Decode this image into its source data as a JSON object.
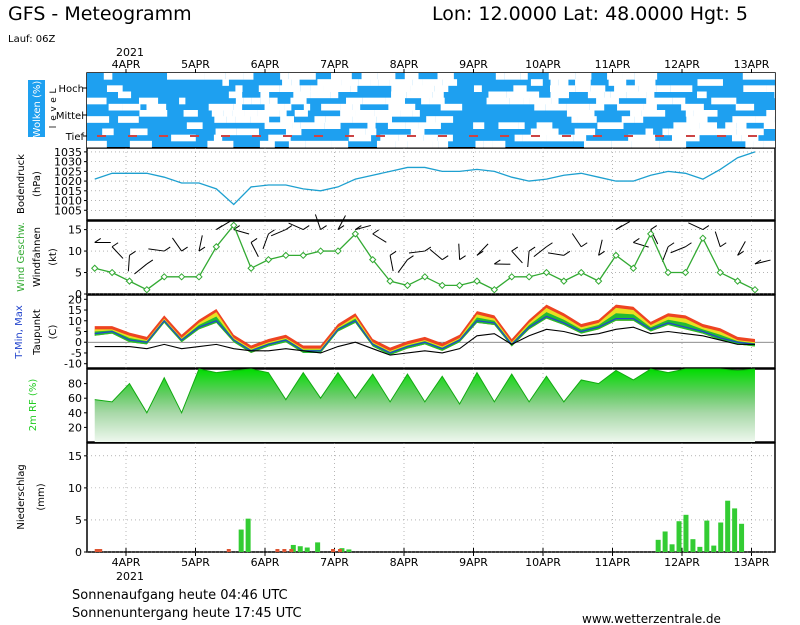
{
  "header": {
    "title": "GFS - Meteogramm",
    "location": "Lon: 12.0000 Lat: 48.0000 Hgt: 5",
    "run": "Lauf: 06Z"
  },
  "footer": {
    "sunrise": "Sonnenaufgang heute 04:46 UTC",
    "sunset": "Sonnenuntergang heute 17:45 UTC",
    "website": "www.wetterzentrale.de"
  },
  "time_axis": {
    "year": "2021",
    "dates": [
      "4APR",
      "5APR",
      "6APR",
      "7APR",
      "8APR",
      "9APR",
      "10APR",
      "11APR",
      "12APR",
      "13APR"
    ]
  },
  "colors": {
    "cloud": "#1ea0f0",
    "pressure": "#1ea0d0",
    "wind": "#33aa33",
    "temp_band_green": "#22bb33",
    "temp_band_yellow": "#e8e022",
    "temp_band_red": "#ee4422",
    "humidity": "#22cc22",
    "precip_rain": "#33cc33",
    "precip_red": "#dd5533"
  },
  "chart_data": [
    {
      "type": "heatmap",
      "title": "Wolken (%)",
      "ylabel": "Level",
      "levels": [
        "Hoch",
        "Mittel",
        "Tief"
      ]
    },
    {
      "type": "line",
      "ylabel": "Bodendruck (hPa)",
      "ylim": [
        1000,
        1037
      ],
      "yticks": [
        1005,
        1010,
        1015,
        1020,
        1025,
        1030,
        1035
      ],
      "x": [
        0,
        0.25,
        0.5,
        0.75,
        1,
        1.25,
        1.5,
        1.75,
        2,
        2.25,
        2.5,
        2.75,
        3,
        3.25,
        3.5,
        3.75,
        4,
        4.25,
        4.5,
        4.75,
        5,
        5.25,
        5.5,
        5.75,
        6,
        6.25,
        6.5,
        6.75,
        7,
        7.25,
        7.5,
        7.75,
        8,
        8.25,
        8.5,
        8.75,
        9,
        9.25,
        9.5
      ],
      "values": [
        1021,
        1024,
        1024,
        1024,
        1022,
        1019,
        1019,
        1016,
        1008,
        1017,
        1018,
        1018,
        1016,
        1015,
        1017,
        1021,
        1023,
        1025,
        1027,
        1027,
        1025,
        1025,
        1026,
        1025,
        1022,
        1020,
        1021,
        1023,
        1024,
        1022,
        1020,
        1020,
        1023,
        1025,
        1024,
        1021,
        1026,
        1032,
        1035
      ]
    },
    {
      "type": "line",
      "ylabel": "Wind Geschw. (kt)",
      "series_label": "Windfahnen",
      "ylim": [
        0,
        17
      ],
      "yticks": [
        0,
        5,
        10,
        15
      ],
      "x": [
        0,
        0.25,
        0.5,
        0.75,
        1,
        1.25,
        1.5,
        1.75,
        2,
        2.25,
        2.5,
        2.75,
        3,
        3.25,
        3.5,
        3.75,
        4,
        4.25,
        4.5,
        4.75,
        5,
        5.25,
        5.5,
        5.75,
        6,
        6.25,
        6.5,
        6.75,
        7,
        7.25,
        7.5,
        7.75,
        8,
        8.25,
        8.5,
        8.75,
        9,
        9.25,
        9.5
      ],
      "values": [
        6,
        5,
        3,
        1,
        4,
        4,
        4,
        11,
        16,
        6,
        8,
        9,
        9,
        10,
        10,
        14,
        8,
        3,
        2,
        4,
        2,
        2,
        3,
        1,
        4,
        4,
        5,
        3,
        5,
        3,
        9,
        6,
        14,
        5,
        5,
        13,
        5,
        3,
        1
      ]
    },
    {
      "type": "area",
      "ylabel": "T-Min, Max (C) / Taupunkt",
      "ylim": [
        -12,
        22
      ],
      "yticks": [
        -10,
        -5,
        0,
        5,
        10,
        15,
        20
      ],
      "x": [
        0,
        0.25,
        0.5,
        0.75,
        1,
        1.25,
        1.5,
        1.75,
        2,
        2.25,
        2.5,
        2.75,
        3,
        3.25,
        3.5,
        3.75,
        4,
        4.25,
        4.5,
        4.75,
        5,
        5.25,
        5.5,
        5.75,
        6,
        6.25,
        6.5,
        6.75,
        7,
        7.25,
        7.5,
        7.75,
        8,
        8.25,
        8.5,
        8.75,
        9,
        9.25,
        9.5
      ],
      "series": [
        {
          "name": "T-Max",
          "values": [
            6,
            6,
            3,
            1,
            11,
            2,
            9,
            14,
            2,
            -3,
            0,
            2,
            -3,
            -3,
            7,
            12,
            0,
            -4,
            -1,
            1,
            -2,
            2,
            13,
            11,
            0,
            9,
            16,
            12,
            7,
            9,
            16,
            15,
            8,
            12,
            11,
            7,
            5,
            1,
            0
          ]
        },
        {
          "name": "T-Min",
          "values": [
            4,
            5,
            1,
            0,
            10,
            1,
            7,
            10,
            1,
            -4,
            -1,
            1,
            -4,
            -4,
            6,
            10,
            -1,
            -5,
            -2,
            0,
            -3,
            1,
            10,
            9,
            -1,
            7,
            12,
            9,
            5,
            7,
            11,
            11,
            6,
            9,
            7,
            5,
            2,
            0,
            -1
          ]
        },
        {
          "name": "Taupunkt",
          "values": [
            -2,
            -2,
            -2,
            -3,
            -1,
            -3,
            -2,
            -1,
            -3,
            -4,
            -4,
            -3,
            -4,
            -5,
            -2,
            0,
            -3,
            -6,
            -5,
            -4,
            -5,
            -3,
            3,
            4,
            -1,
            3,
            6,
            5,
            3,
            4,
            6,
            7,
            4,
            5,
            4,
            3,
            1,
            -1,
            -1
          ]
        }
      ]
    },
    {
      "type": "area",
      "ylabel": "2m RF (%)",
      "ylim": [
        0,
        100
      ],
      "yticks": [
        20,
        40,
        60,
        80
      ],
      "x": [
        0,
        0.25,
        0.5,
        0.75,
        1,
        1.25,
        1.5,
        1.75,
        2,
        2.25,
        2.5,
        2.75,
        3,
        3.25,
        3.5,
        3.75,
        4,
        4.25,
        4.5,
        4.75,
        5,
        5.25,
        5.5,
        5.75,
        6,
        6.25,
        6.5,
        6.75,
        7,
        7.25,
        7.5,
        7.75,
        8,
        8.25,
        8.5,
        8.75,
        9,
        9.25,
        9.5
      ],
      "values": [
        58,
        55,
        80,
        40,
        88,
        40,
        100,
        95,
        98,
        100,
        95,
        58,
        95,
        60,
        95,
        60,
        93,
        55,
        93,
        55,
        90,
        52,
        95,
        55,
        93,
        55,
        90,
        55,
        85,
        80,
        98,
        85,
        100,
        95,
        100,
        100,
        100,
        98,
        100
      ]
    },
    {
      "type": "bar",
      "ylabel": "Niederschlag (mm)",
      "ylim": [
        0,
        17
      ],
      "yticks": [
        0,
        5,
        10,
        15
      ],
      "x": [
        2.1,
        2.2,
        2.85,
        2.95,
        3.05,
        3.2,
        3.55,
        3.65,
        8.1,
        8.2,
        8.3,
        8.4,
        8.5,
        8.6,
        8.7,
        8.8,
        8.9,
        9.0,
        9.1,
        9.2,
        9.3
      ],
      "values": [
        3.5,
        5.2,
        1.1,
        0.9,
        0.7,
        1.5,
        0.6,
        0.4,
        1.9,
        3.2,
        1.2,
        4.8,
        5.8,
        2.0,
        0.8,
        4.9,
        1.0,
        4.6,
        8.0,
        6.8,
        4.4
      ]
    }
  ]
}
